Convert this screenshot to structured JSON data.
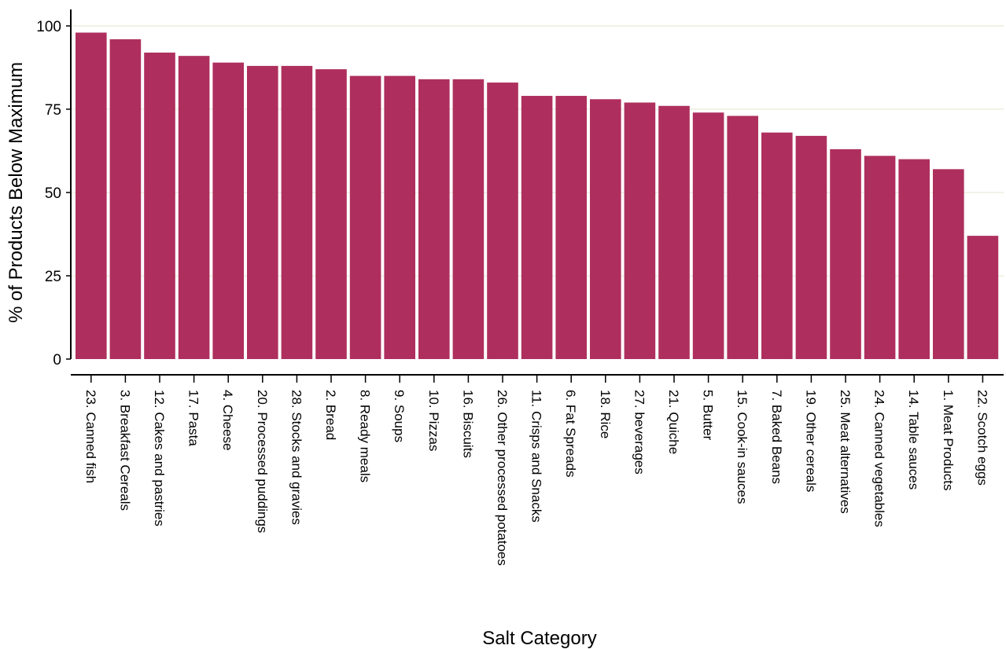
{
  "chart_data": {
    "type": "bar",
    "title": "",
    "xlabel": "Salt Category",
    "ylabel": "% of Products Below Maximum",
    "ylim": [
      0,
      100
    ],
    "yticks": [
      0,
      25,
      50,
      75,
      100
    ],
    "grid": true,
    "legend": "none",
    "bar_color": "#AE2F5D",
    "grid_color": "#EDEDE1",
    "categories": [
      "23. Canned fish",
      "3. Breakfast Cereals",
      "12. Cakes and pastries",
      "17. Pasta",
      "4. Cheese",
      "20. Processed puddings",
      "28. Stocks and gravies",
      "2. Bread",
      "8. Ready meals",
      "9. Soups",
      "10. Pizzas",
      "16. Biscuits",
      "26. Other processed potatoes",
      "11. Crisps and Snacks",
      "6. Fat Spreads",
      "18. Rice",
      "27. beverages",
      "21. Quiche",
      "5. Butter",
      "15. Cook-in sauces",
      "7. Baked Beans",
      "19. Other cereals",
      "25. Meat alternatives",
      "24. Canned vegetables",
      "14. Table sauces",
      "1. Meat Products",
      "22. Scotch eggs"
    ],
    "values": [
      98,
      96,
      92,
      91,
      89,
      88,
      88,
      87,
      85,
      85,
      84,
      84,
      83,
      79,
      79,
      78,
      77,
      76,
      74,
      73,
      68,
      67,
      63,
      61,
      60,
      57,
      37
    ]
  }
}
